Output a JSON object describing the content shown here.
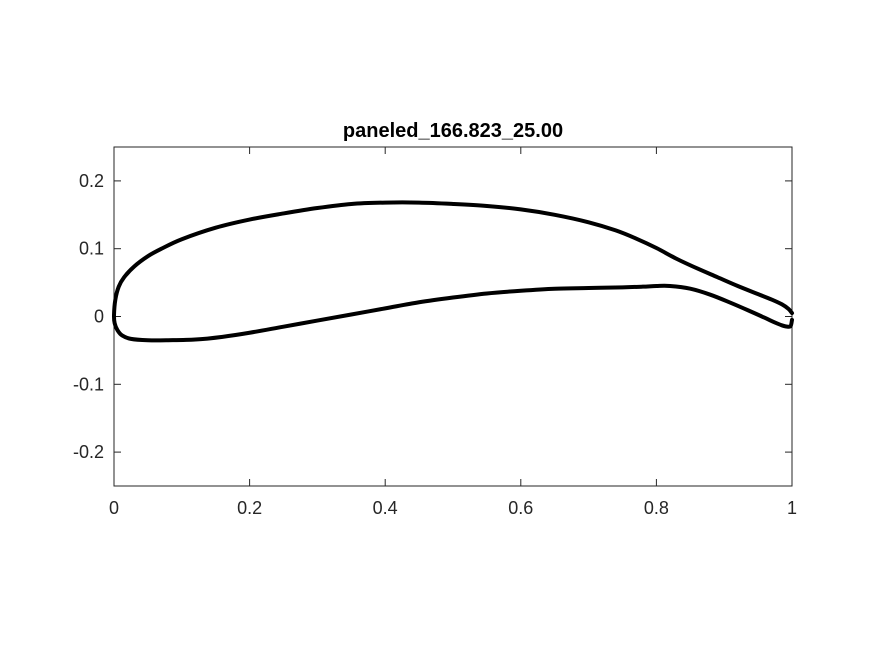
{
  "chart_data": {
    "type": "line",
    "title": "paneled_166.823_25.00",
    "xlabel": "",
    "ylabel": "",
    "xlim": [
      0,
      1
    ],
    "ylim": [
      -0.25,
      0.25
    ],
    "xticks": [
      0,
      0.2,
      0.4,
      0.6,
      0.8,
      1
    ],
    "xtick_labels": [
      "0",
      "0.2",
      "0.4",
      "0.6",
      "0.8",
      "1"
    ],
    "yticks": [
      -0.2,
      -0.1,
      0,
      0.1,
      0.2
    ],
    "ytick_labels": [
      "-0.2",
      "-0.1",
      "0",
      "0.1",
      "0.2"
    ],
    "grid": false,
    "colors": {
      "line": "#000000",
      "axis": "#262626",
      "background": "#ffffff"
    },
    "series": [
      {
        "x": [
          1.0,
          0.995,
          0.985,
          0.97,
          0.95,
          0.92,
          0.89,
          0.86,
          0.83,
          0.8,
          0.77,
          0.74,
          0.7,
          0.65,
          0.6,
          0.55,
          0.5,
          0.45,
          0.4,
          0.35,
          0.3,
          0.25,
          0.2,
          0.15,
          0.1,
          0.07,
          0.05,
          0.03,
          0.015,
          0.007,
          0.002,
          0.0,
          0.001,
          0.005,
          0.012,
          0.025,
          0.05,
          0.08,
          0.12,
          0.16,
          0.2,
          0.25,
          0.3,
          0.35,
          0.4,
          0.45,
          0.5,
          0.55,
          0.6,
          0.65,
          0.7,
          0.75,
          0.78,
          0.8,
          0.82,
          0.85,
          0.88,
          0.91,
          0.94,
          0.96,
          0.975,
          0.985,
          0.993,
          0.998,
          1.0
        ],
        "y": [
          0.005,
          0.011,
          0.018,
          0.025,
          0.033,
          0.045,
          0.058,
          0.071,
          0.085,
          0.101,
          0.115,
          0.127,
          0.139,
          0.15,
          0.158,
          0.163,
          0.166,
          0.168,
          0.168,
          0.166,
          0.16,
          0.152,
          0.143,
          0.131,
          0.114,
          0.1,
          0.089,
          0.074,
          0.058,
          0.044,
          0.025,
          0.002,
          -0.01,
          -0.02,
          -0.028,
          -0.033,
          -0.035,
          -0.035,
          -0.034,
          -0.03,
          -0.024,
          -0.015,
          -0.006,
          0.003,
          0.012,
          0.021,
          0.028,
          0.034,
          0.038,
          0.041,
          0.042,
          0.043,
          0.044,
          0.045,
          0.045,
          0.041,
          0.032,
          0.02,
          0.007,
          -0.002,
          -0.009,
          -0.013,
          -0.015,
          -0.014,
          -0.005
        ]
      }
    ]
  }
}
